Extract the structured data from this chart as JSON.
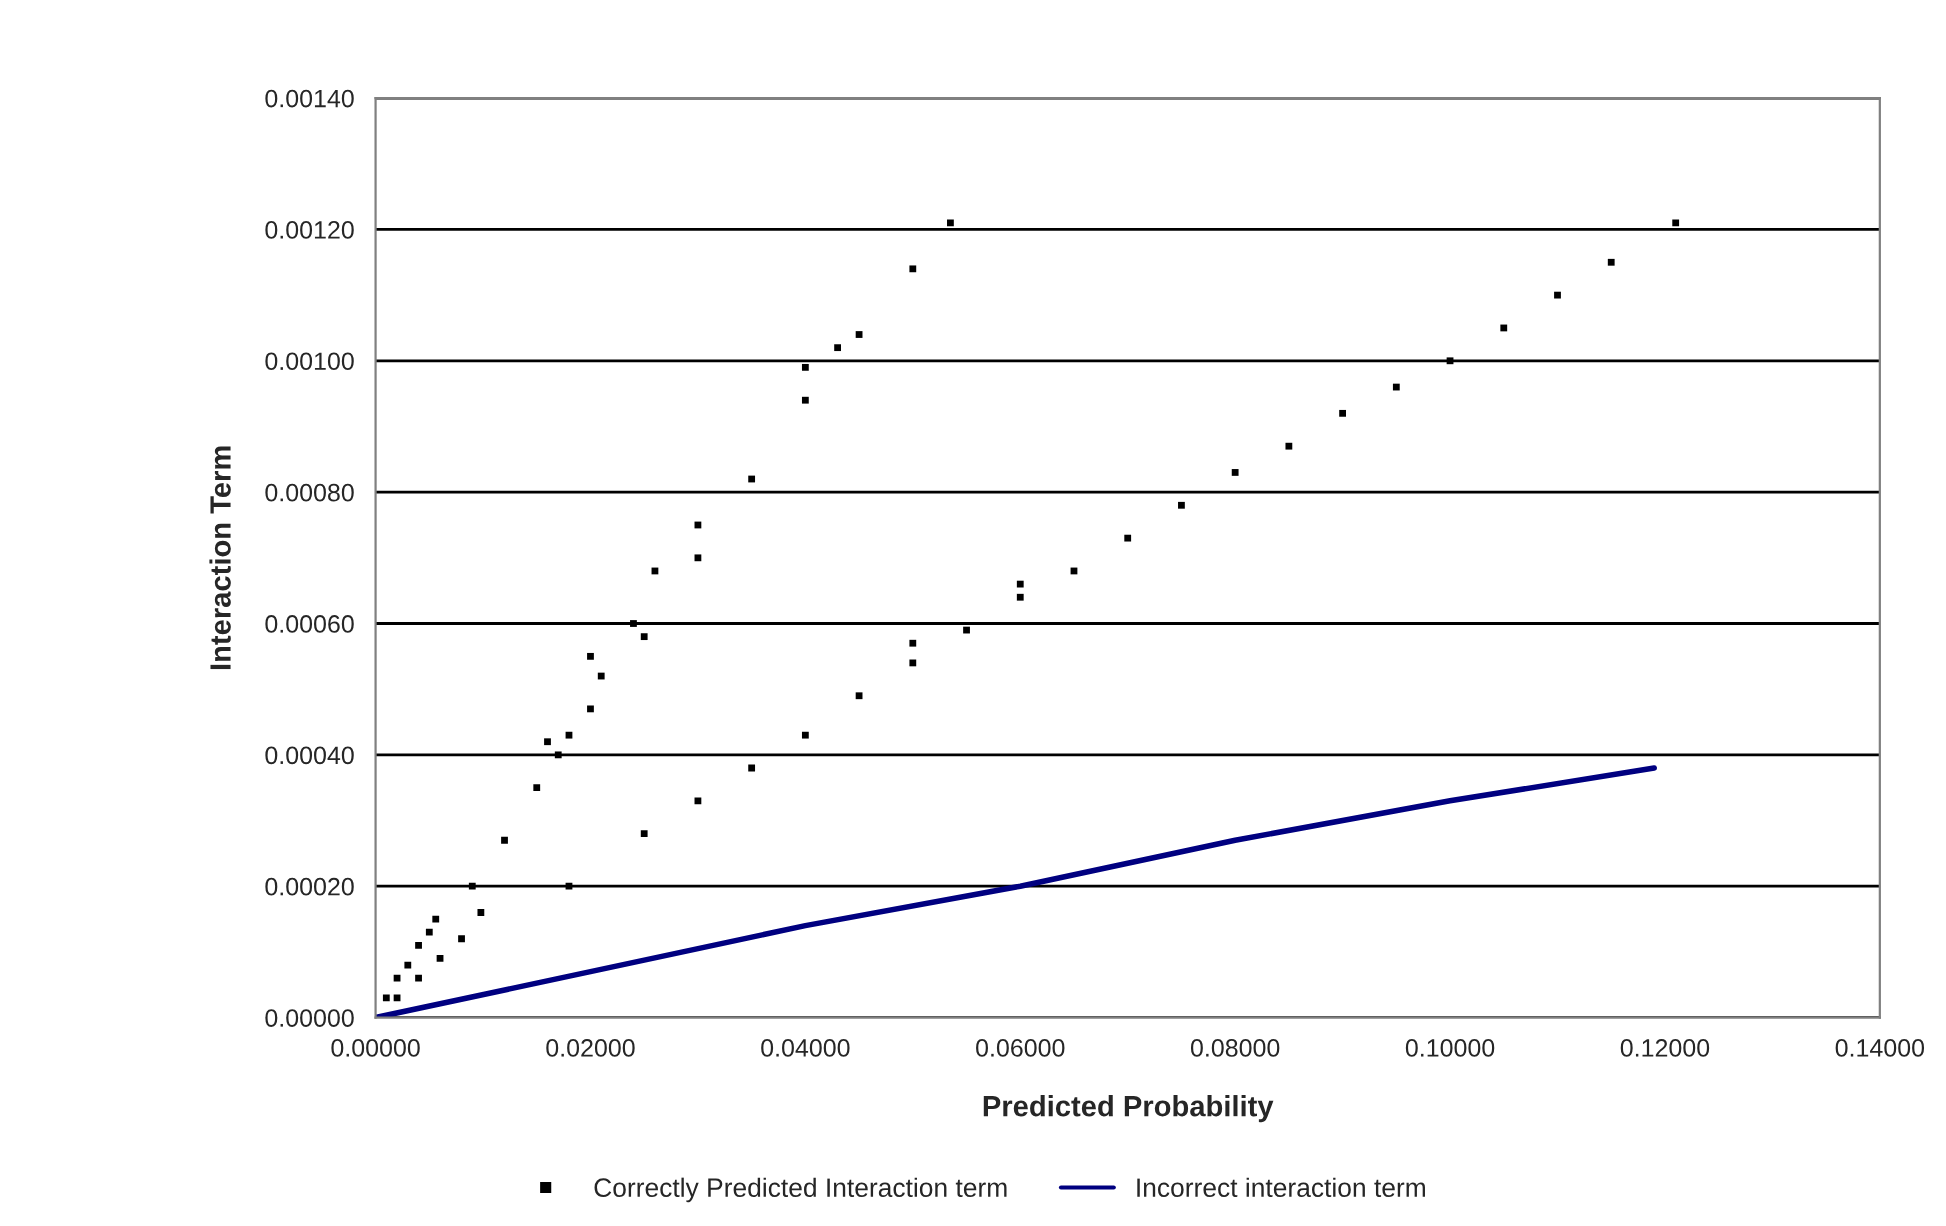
{
  "chart_data": {
    "type": "scatter",
    "xlabel": "Predicted Probability",
    "ylabel": "Interaction Term",
    "xlim": [
      0,
      0.14
    ],
    "ylim": [
      0,
      0.0014
    ],
    "xticks": [
      {
        "value": 0,
        "label": "0.00000"
      },
      {
        "value": 0.02,
        "label": "0.02000"
      },
      {
        "value": 0.04,
        "label": "0.04000"
      },
      {
        "value": 0.06,
        "label": "0.06000"
      },
      {
        "value": 0.08,
        "label": "0.08000"
      },
      {
        "value": 0.1,
        "label": "0.10000"
      },
      {
        "value": 0.12,
        "label": "0.12000"
      },
      {
        "value": 0.14,
        "label": "0.14000"
      }
    ],
    "yticks": [
      {
        "value": 0,
        "label": "0.00000"
      },
      {
        "value": 0.0002,
        "label": "0.00020"
      },
      {
        "value": 0.0004,
        "label": "0.00040"
      },
      {
        "value": 0.0006,
        "label": "0.00060"
      },
      {
        "value": 0.0008,
        "label": "0.00080"
      },
      {
        "value": 0.001,
        "label": "0.00100"
      },
      {
        "value": 0.0012,
        "label": "0.00120"
      },
      {
        "value": 0.0014,
        "label": "0.00140"
      }
    ],
    "grid": "y",
    "legend": "bottom",
    "series": [
      {
        "name": "Correctly Predicted Interaction term",
        "color": "#000000",
        "marker": "square",
        "x": [
          0.001,
          0.002,
          0.003,
          0.004,
          0.005,
          0.0056,
          0.002,
          0.004,
          0.006,
          0.008,
          0.0098,
          0.009,
          0.012,
          0.015,
          0.018,
          0.021,
          0.024,
          0.026,
          0.016,
          0.02,
          0.017,
          0.02,
          0.025,
          0.03,
          0.035,
          0.04,
          0.045,
          0.05,
          0.0535,
          0.03,
          0.04,
          0.043,
          0.018,
          0.025,
          0.03,
          0.035,
          0.04,
          0.045,
          0.05,
          0.055,
          0.06,
          0.065,
          0.07,
          0.075,
          0.08,
          0.085,
          0.09,
          0.095,
          0.1,
          0.105,
          0.11,
          0.115,
          0.121,
          0.05,
          0.06
        ],
        "values": [
          3e-05,
          6e-05,
          8e-05,
          0.00011,
          0.00013,
          0.00015,
          3e-05,
          6e-05,
          9e-05,
          0.00012,
          0.00016,
          0.0002,
          0.00027,
          0.00035,
          0.00043,
          0.00052,
          0.0006,
          0.00068,
          0.00042,
          0.00055,
          0.0004,
          0.00047,
          0.00058,
          0.0007,
          0.00082,
          0.00094,
          0.00104,
          0.00114,
          0.00121,
          0.00075,
          0.00099,
          0.00102,
          0.0002,
          0.00028,
          0.00033,
          0.00038,
          0.00043,
          0.00049,
          0.00054,
          0.00059,
          0.00064,
          0.00068,
          0.00073,
          0.00078,
          0.00083,
          0.00087,
          0.00092,
          0.00096,
          0.001,
          0.00105,
          0.0011,
          0.00115,
          0.00121,
          0.00057,
          0.00066
        ]
      },
      {
        "name": "Incorrect interaction term",
        "type": "line",
        "color": "#000080",
        "x": [
          0,
          0.02,
          0.04,
          0.06,
          0.08,
          0.1,
          0.119
        ],
        "values": [
          0,
          7e-05,
          0.00014,
          0.0002,
          0.00027,
          0.00033,
          0.00038
        ]
      }
    ]
  }
}
